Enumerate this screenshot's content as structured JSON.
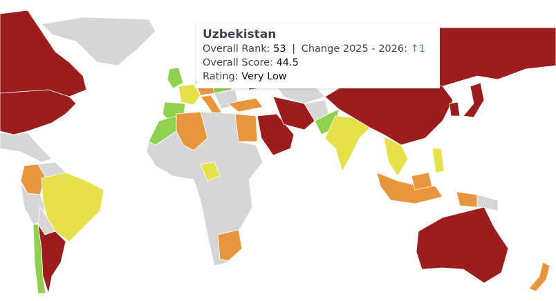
{
  "colors": {
    "very_low": "#9c1d1d",
    "low": "#e8963e",
    "moderate": "#e6e04a",
    "high": "#8fd14f",
    "no_data": "#d6d6d6",
    "positive_change": "#3f9a3a"
  },
  "tooltip": {
    "country": "Uzbekistan",
    "rank_label": "Overall Rank:",
    "rank": "53",
    "change_label": "Change 2025 - 2026:",
    "change_icon": "arrow-up-icon",
    "change_arrow": "↑",
    "change": "1",
    "score_label": "Overall Score:",
    "score": "44.5",
    "rating_label": "Rating:",
    "rating": "Very Low"
  }
}
